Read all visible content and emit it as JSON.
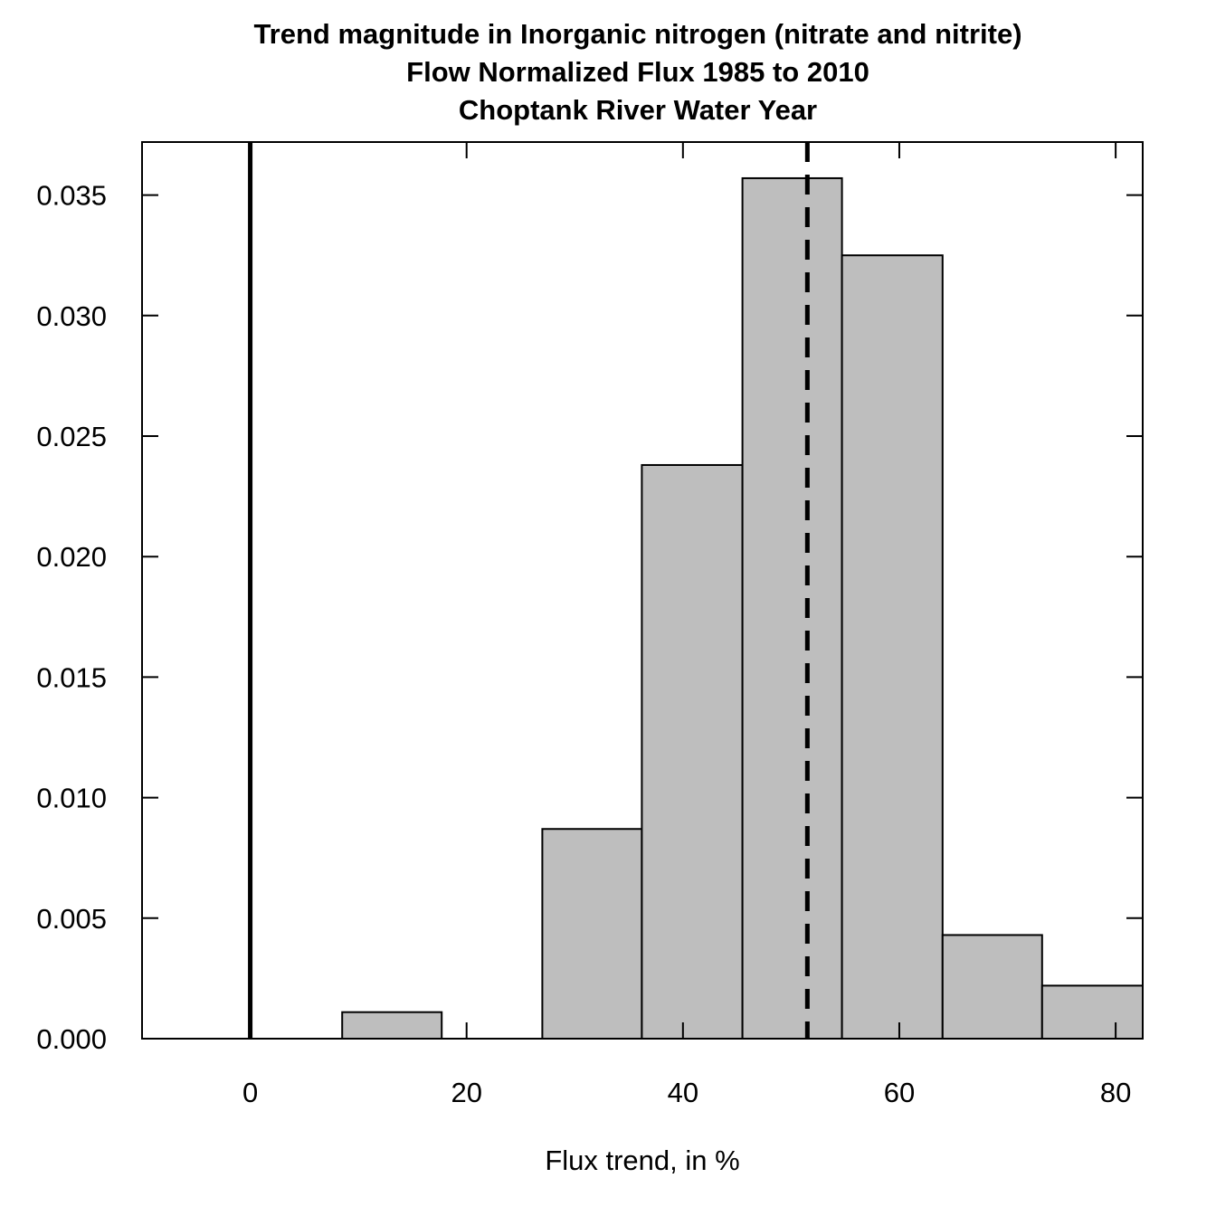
{
  "chart_data": {
    "type": "bar",
    "title_lines": [
      "Trend magnitude in Inorganic nitrogen (nitrate and nitrite)",
      "Flow Normalized Flux 1985 to 2010",
      "Choptank River Water Year"
    ],
    "xlabel": "Flux trend, in %",
    "ylabel": "",
    "xlim": [
      -10,
      82.5
    ],
    "ylim": [
      0,
      0.0372
    ],
    "x_ticks": [
      "0",
      "20",
      "40",
      "60",
      "80"
    ],
    "y_ticks": [
      "0.000",
      "0.005",
      "0.010",
      "0.015",
      "0.020",
      "0.025",
      "0.030",
      "0.035"
    ],
    "bins": [
      {
        "start": 8.5,
        "end": 17.7,
        "density": 0.0011
      },
      {
        "start": 17.7,
        "end": 27.0,
        "density": 0.0
      },
      {
        "start": 27.0,
        "end": 36.2,
        "density": 0.0087
      },
      {
        "start": 36.2,
        "end": 45.5,
        "density": 0.0238
      },
      {
        "start": 45.5,
        "end": 54.7,
        "density": 0.0357
      },
      {
        "start": 54.7,
        "end": 64.0,
        "density": 0.0325
      },
      {
        "start": 64.0,
        "end": 73.2,
        "density": 0.0043
      },
      {
        "start": 73.2,
        "end": 82.5,
        "density": 0.0022
      }
    ],
    "zero_line_x": 0,
    "median_line_x": 51.5,
    "bar_color": "#bebebe",
    "grid": false
  }
}
